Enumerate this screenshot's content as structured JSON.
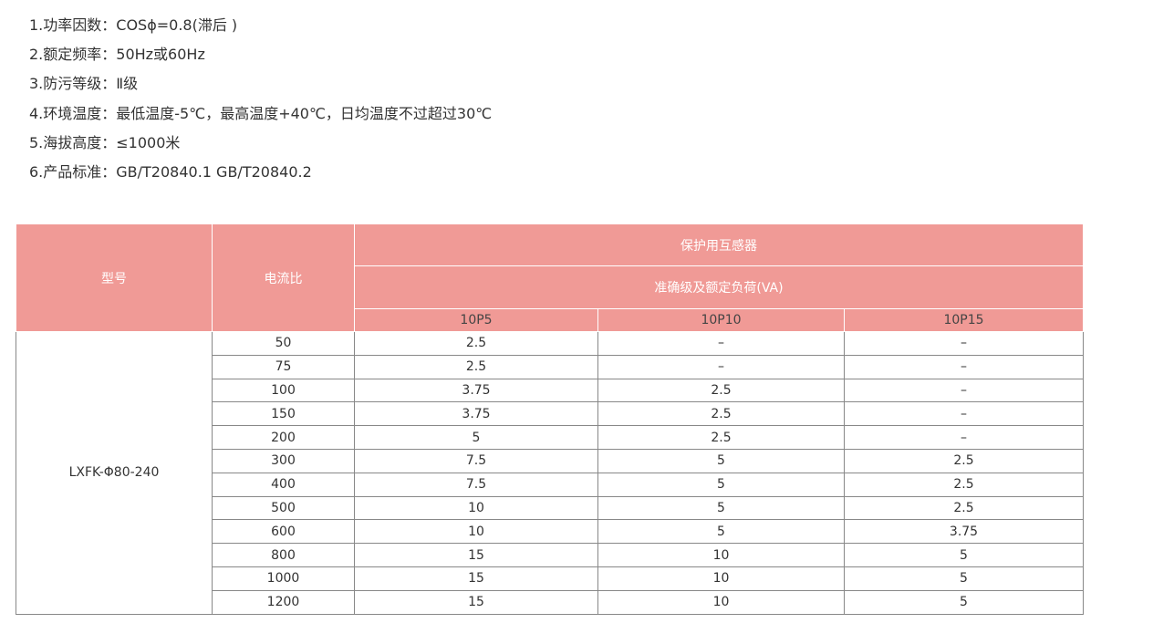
{
  "specs": [
    "1.功率因数：COSϕ=0.8(滞后 )",
    "2.额定频率：50Hz或60Hz",
    "3.防污等级：Ⅱ级",
    "4.环境温度：最低温度-5℃，最高温度+40℃，日均温度不过超过30℃",
    "5.海拔高度：≤1000米",
    "6.产品标准：GB/T20840.1   GB/T20840.2"
  ],
  "table": {
    "header_color": "#f09a96",
    "col_model": "型号",
    "col_ratio": "电流比",
    "group_title": "保护用互感器",
    "group_subtitle": "准确级及额定负荷(VA)",
    "classes": [
      "10P5",
      "10P10",
      "10P15"
    ],
    "model": "LXFK-Φ80-240",
    "rows": [
      [
        "50",
        "2.5",
        "–",
        "–"
      ],
      [
        "75",
        "2.5",
        "–",
        "–"
      ],
      [
        "100",
        "3.75",
        "2.5",
        "–"
      ],
      [
        "150",
        "3.75",
        "2.5",
        "–"
      ],
      [
        "200",
        "5",
        "2.5",
        "–"
      ],
      [
        "300",
        "7.5",
        "5",
        "2.5"
      ],
      [
        "400",
        "7.5",
        "5",
        "2.5"
      ],
      [
        "500",
        "10",
        "5",
        "2.5"
      ],
      [
        "600",
        "10",
        "5",
        "3.75"
      ],
      [
        "800",
        "15",
        "10",
        "5"
      ],
      [
        "1000",
        "15",
        "10",
        "5"
      ],
      [
        "1200",
        "15",
        "10",
        "5"
      ]
    ]
  }
}
